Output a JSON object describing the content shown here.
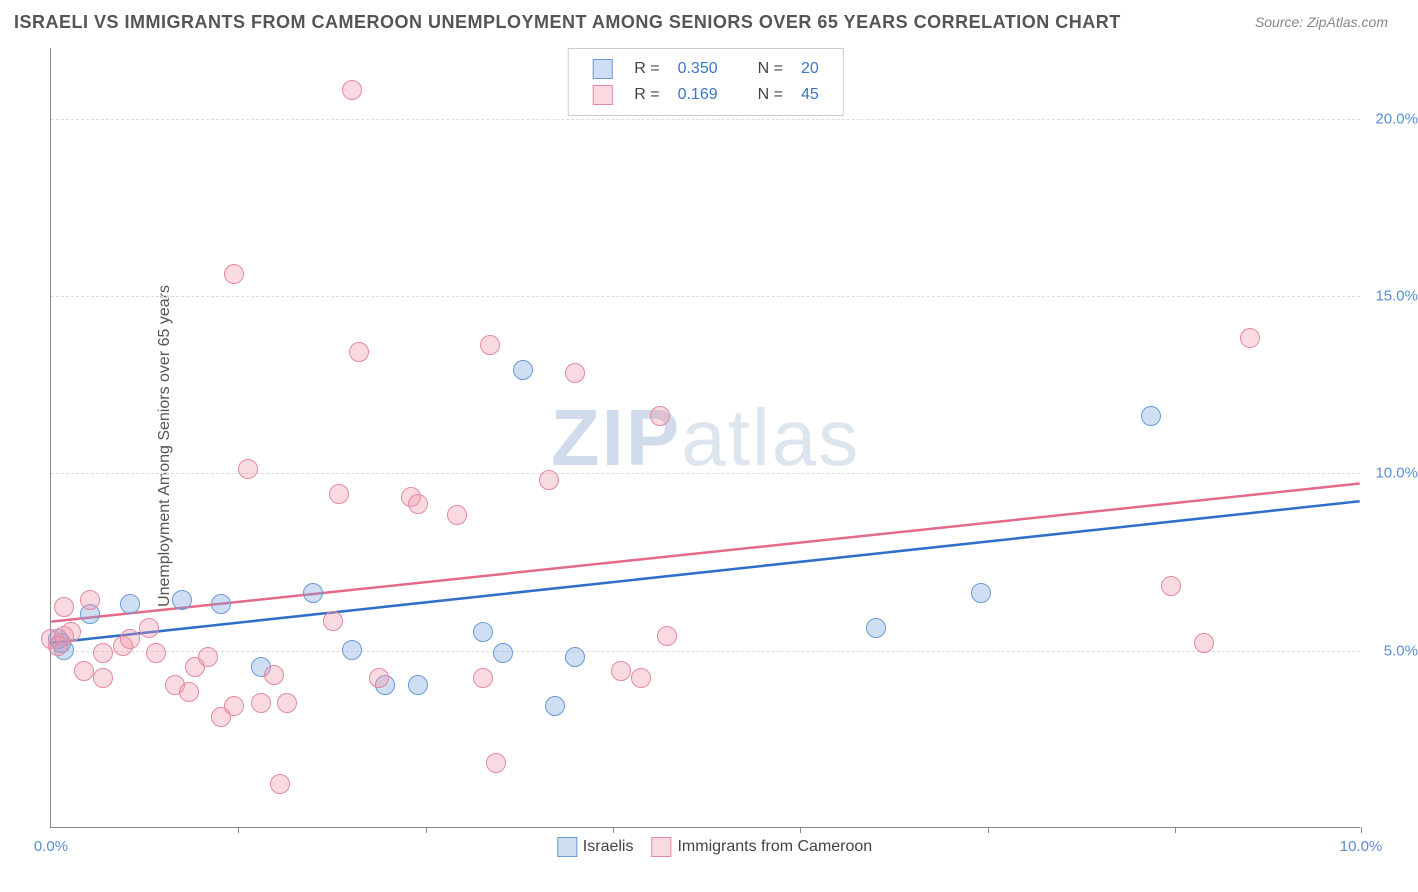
{
  "title": "ISRAELI VS IMMIGRANTS FROM CAMEROON UNEMPLOYMENT AMONG SENIORS OVER 65 YEARS CORRELATION CHART",
  "source": "Source: ZipAtlas.com",
  "ylabel": "Unemployment Among Seniors over 65 years",
  "watermark_bold": "ZIP",
  "watermark_rest": "atlas",
  "chart": {
    "type": "scatter",
    "xlim": [
      0,
      10
    ],
    "ylim": [
      0,
      22
    ],
    "xticks": [
      0,
      10
    ],
    "xtick_labels": [
      "0.0%",
      "10.0%"
    ],
    "yticks": [
      5,
      10,
      15,
      20
    ],
    "ytick_labels": [
      "5.0%",
      "10.0%",
      "15.0%",
      "20.0%"
    ],
    "x_vgrid": [
      1.43,
      2.86,
      4.29,
      5.72,
      7.15,
      8.58,
      10.0
    ],
    "background_color": "#ffffff",
    "grid_color": "#dddddd",
    "axis_color": "#888888",
    "marker_radius": 10,
    "marker_border": 1,
    "series": [
      {
        "name": "Israelis",
        "legend_label": "Israelis",
        "R": "0.350",
        "N": "20",
        "fill": "rgba(120,160,220,0.35)",
        "stroke": "#6a9bd8",
        "line_color": "#2f6fc9",
        "trend": {
          "x1": 0,
          "y1": 5.2,
          "x2": 10,
          "y2": 9.2
        },
        "points": [
          [
            0.05,
            5.3
          ],
          [
            0.08,
            5.2
          ],
          [
            0.1,
            5.0
          ],
          [
            0.3,
            6.0
          ],
          [
            0.6,
            6.3
          ],
          [
            1.0,
            6.4
          ],
          [
            1.3,
            6.3
          ],
          [
            1.6,
            4.5
          ],
          [
            2.0,
            6.6
          ],
          [
            2.3,
            5.0
          ],
          [
            2.55,
            4.0
          ],
          [
            2.8,
            4.0
          ],
          [
            3.3,
            5.5
          ],
          [
            3.45,
            4.9
          ],
          [
            3.6,
            12.9
          ],
          [
            3.85,
            3.4
          ],
          [
            4.0,
            4.8
          ],
          [
            6.3,
            5.6
          ],
          [
            7.1,
            6.6
          ],
          [
            8.4,
            11.6
          ]
        ]
      },
      {
        "name": "Immigrants from Cameroon",
        "legend_label": "Immigrants from Cameroon",
        "R": "0.169",
        "N": "45",
        "fill": "rgba(240,150,170,0.35)",
        "stroke": "#e48aa0",
        "line_color": "#e46a8a",
        "trend": {
          "x1": 0,
          "y1": 5.8,
          "x2": 10,
          "y2": 9.7
        },
        "points": [
          [
            0.0,
            5.3
          ],
          [
            0.05,
            5.1
          ],
          [
            0.1,
            5.4
          ],
          [
            0.1,
            6.2
          ],
          [
            0.15,
            5.5
          ],
          [
            0.25,
            4.4
          ],
          [
            0.3,
            6.4
          ],
          [
            0.4,
            4.9
          ],
          [
            0.4,
            4.2
          ],
          [
            0.55,
            5.1
          ],
          [
            0.6,
            5.3
          ],
          [
            0.75,
            5.6
          ],
          [
            0.8,
            4.9
          ],
          [
            0.95,
            4.0
          ],
          [
            1.05,
            3.8
          ],
          [
            1.1,
            4.5
          ],
          [
            1.2,
            4.8
          ],
          [
            1.3,
            3.1
          ],
          [
            1.4,
            3.4
          ],
          [
            1.4,
            15.6
          ],
          [
            1.5,
            10.1
          ],
          [
            1.6,
            3.5
          ],
          [
            1.7,
            4.3
          ],
          [
            1.75,
            1.2
          ],
          [
            1.8,
            3.5
          ],
          [
            2.15,
            5.8
          ],
          [
            2.2,
            9.4
          ],
          [
            2.3,
            20.8
          ],
          [
            2.35,
            13.4
          ],
          [
            2.5,
            4.2
          ],
          [
            2.75,
            9.3
          ],
          [
            2.8,
            9.1
          ],
          [
            3.1,
            8.8
          ],
          [
            3.3,
            4.2
          ],
          [
            3.35,
            13.6
          ],
          [
            3.4,
            1.8
          ],
          [
            3.8,
            9.8
          ],
          [
            4.0,
            12.8
          ],
          [
            4.35,
            4.4
          ],
          [
            4.5,
            4.2
          ],
          [
            4.65,
            11.6
          ],
          [
            4.7,
            5.4
          ],
          [
            8.55,
            6.8
          ],
          [
            8.8,
            5.2
          ],
          [
            9.15,
            13.8
          ]
        ]
      }
    ]
  },
  "legend": {
    "r_label": "R =",
    "n_label": "N ="
  }
}
